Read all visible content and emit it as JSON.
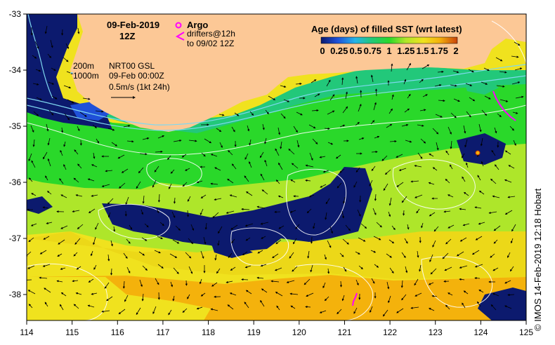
{
  "map": {
    "date": "09-Feb-2019",
    "time": "12Z",
    "argo_label": "Argo",
    "drifter_label_1": "drifters@12h",
    "drifter_label_2": "to 09/02 12Z",
    "isobath_200": "200m",
    "isobath_1000": "1000m",
    "model_name": "NRT00 GSL",
    "model_time": "09-Feb 00:00Z",
    "vector_scale": "0.5m/s (1kt 24h)",
    "colorbar_title": "Age (days) of filled SST (wrt latest)",
    "colorbar_ticks": [
      "0",
      "0.25",
      "0.5",
      "0.75",
      "1",
      "1.25",
      "1.5",
      "1.75",
      "2"
    ],
    "credit": "© IMOS 14-Feb-2019 12:18 Hobart",
    "lon_ticks": [
      "114",
      "115",
      "116",
      "117",
      "118",
      "119",
      "120",
      "121",
      "122",
      "123",
      "124",
      "125"
    ],
    "lat_ticks": [
      "-33",
      "-34",
      "-35",
      "-36",
      "-37",
      "-38"
    ],
    "colors": {
      "land": "#fcc896",
      "age_0": "#0c1a6e",
      "age_025": "#1f50d8",
      "age_05": "#25b4e8",
      "age_075": "#22c87a",
      "age_1": "#2ad82a",
      "age_125": "#aee62a",
      "age_15": "#f0e21e",
      "age_175": "#f4b20c",
      "age_2": "#d8780a",
      "argo": "#ff00ff",
      "drifter": "#ff00ff"
    }
  }
}
